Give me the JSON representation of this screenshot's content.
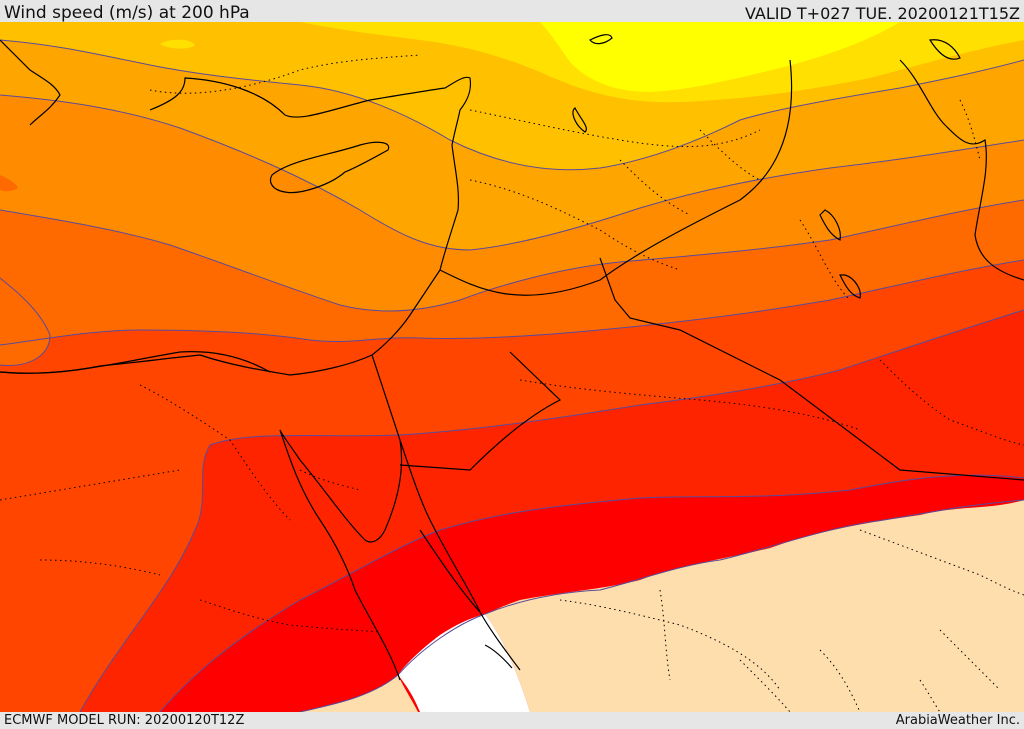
{
  "header": {
    "title": "Wind speed (m/s) at 200 hPa",
    "valid": "VALID T+027 TUE. 20200121T15Z"
  },
  "footer": {
    "model_run": "ECMWF MODEL RUN: 20200120T12Z",
    "credit": "ArabiaWeather Inc."
  },
  "map": {
    "field": "wind speed at 200 hPa",
    "units": "m/s",
    "band_colors": [
      "#ffff00",
      "#ffe000",
      "#ffc000",
      "#ffa500",
      "#ff8c00",
      "#ff6a00",
      "#ff4500",
      "#ff2400",
      "#ff0000",
      "#ffdead",
      "#ffffff"
    ],
    "contour_color": "#5a4a9a",
    "coastline_color": "#000000"
  }
}
